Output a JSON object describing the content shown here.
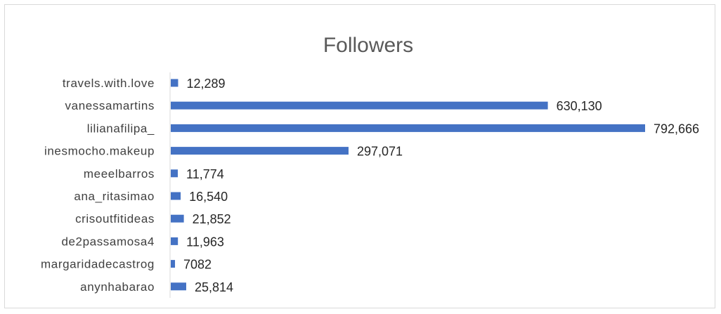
{
  "chart_data": {
    "type": "bar",
    "orientation": "horizontal",
    "title": "Followers",
    "xlabel": "",
    "ylabel": "",
    "categories": [
      "travels.with.love",
      "vanessamartins",
      "lilianafilipa_",
      "inesmocho.makeup",
      "meeelbarros",
      "ana_ritasimao",
      "crisoutfitideas",
      "de2passamosa4",
      "margaridadecastrog",
      "anynhabarao"
    ],
    "values": [
      12289,
      630130,
      792666,
      297071,
      11774,
      16540,
      21852,
      11963,
      7082,
      25814
    ],
    "value_labels": [
      "12,289",
      "630,130",
      "792,666",
      "297,071",
      "11,774",
      "16,540",
      "21,852",
      "11,963",
      "7082",
      "25,814"
    ],
    "xlim": [
      0,
      800000
    ],
    "grid": false,
    "legend": "none",
    "colors": {
      "bar": "#4472c4",
      "axis": "#d9d9d9"
    }
  }
}
